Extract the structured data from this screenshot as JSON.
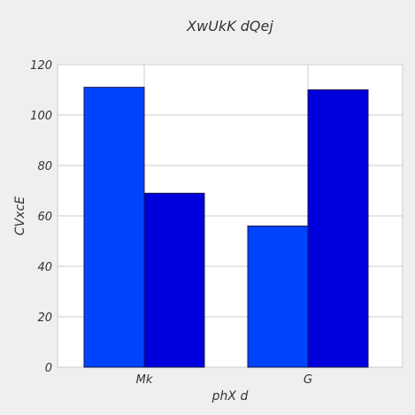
{
  "chart_data": {
    "type": "bar",
    "title": "XwUkK dQej",
    "xlabel": "phX d",
    "ylabel": "CVxcE",
    "categories": [
      "Mk",
      "G"
    ],
    "series": [
      {
        "values": [
          111,
          56
        ],
        "color": "#0044ff"
      },
      {
        "values": [
          69,
          110
        ],
        "color": "#0000dd"
      }
    ],
    "ylim": [
      0,
      120
    ],
    "yticks": [
      0,
      20,
      40,
      60,
      80,
      100,
      120
    ],
    "grid": true,
    "background": "#efefef",
    "plot_background": "#ffffff"
  }
}
